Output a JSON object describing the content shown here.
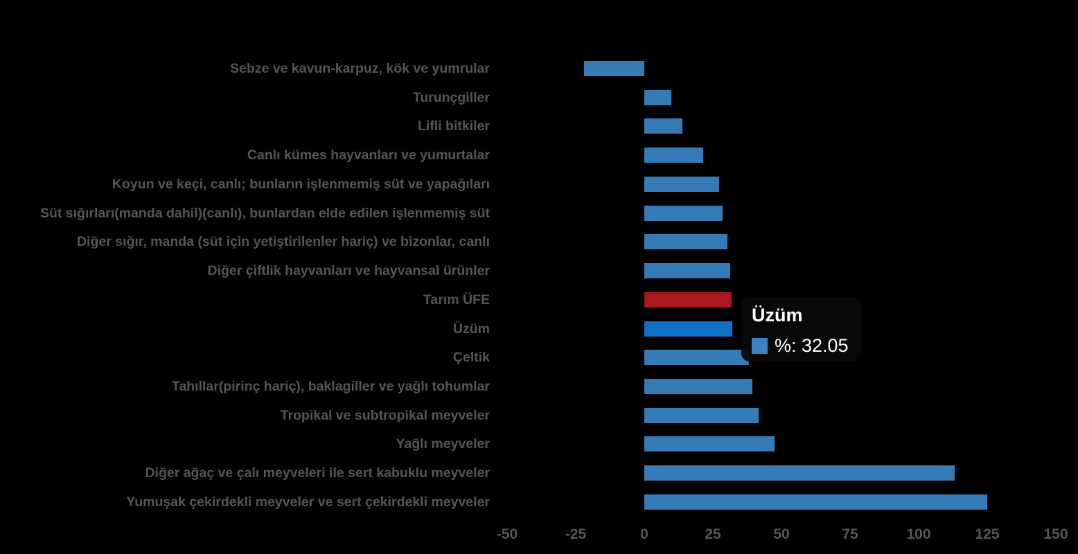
{
  "chart_data": {
    "type": "bar",
    "orientation": "horizontal",
    "title": "",
    "xlabel": "",
    "ylabel": "",
    "xlim": [
      -50,
      150
    ],
    "xticks": [
      -50,
      -25,
      0,
      25,
      50,
      75,
      100,
      125,
      150
    ],
    "grid": false,
    "legend_position": "none",
    "categories": [
      "Sebze ve kavun-karpuz, kök ve yumrular",
      "Turunçgiller",
      "Lifli bitkiler",
      "Canlı kümes hayvanları ve yumurtalar",
      "Koyun ve keçi, canlı; bunların işlenmemiş süt ve yapağıları",
      "Süt sığırları(manda dahil)(canlı), bunlardan elde edilen işlenmemiş süt",
      "Diğer sığır, manda (süt için yetiştirilenler hariç) ve bizonlar, canlı",
      "Diğer çiftlik hayvanları ve hayvansal ürünler",
      "Tarım ÜFE",
      "Üzüm",
      "Çeltik",
      "Tahıllar(pirinç hariç), baklagiller ve yağlı tohumlar",
      "Tropikal ve subtropikal meyveler",
      "Yağlı meyveler",
      "Diğer ağaç ve çalı meyveleri ile sert kabuklu meyveler",
      "Yumuşak çekirdekli meyveler ve sert çekirdekli meyveler"
    ],
    "values": [
      -21.9,
      9.9,
      13.9,
      21.5,
      27.3,
      28.5,
      30.3,
      31.3,
      31.7,
      32.05,
      38.1,
      39.4,
      41.7,
      47.5,
      113.2,
      125.0
    ],
    "bar_roles": [
      "normal",
      "normal",
      "normal",
      "normal",
      "normal",
      "normal",
      "normal",
      "normal",
      "reference",
      "active",
      "normal",
      "normal",
      "normal",
      "normal",
      "normal",
      "normal"
    ],
    "colors": {
      "normal_bar": "#357CB7",
      "reference_bar": "#AA171D",
      "active_bar": "#0D71C6",
      "label_text": "#565656",
      "axis_text": "#565656",
      "background": "#000000"
    }
  },
  "tooltip": {
    "title": "Üzüm",
    "value_text": "%: 32.05",
    "marker_color": "#3C83C3",
    "text_color": "#FFFFFF"
  }
}
